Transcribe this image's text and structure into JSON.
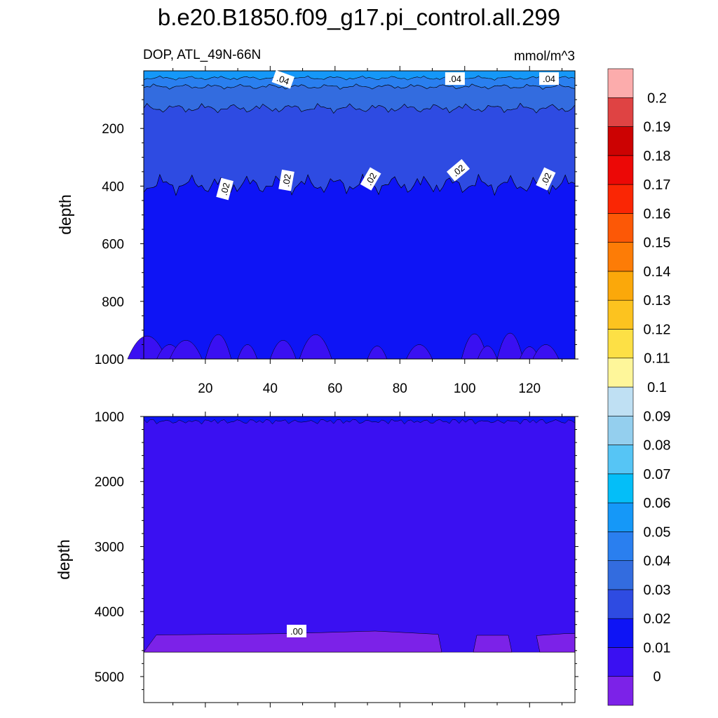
{
  "chart_data": {
    "type": "contour",
    "title": "b.e20.B1850.f09_g17.pi_control.all.299",
    "variable_label": "DOP, ATL_49N-66N",
    "units": "mmol/m^3",
    "colorbar": {
      "levels": [
        "0",
        "0.01",
        "0.02",
        "0.03",
        "0.04",
        "0.05",
        "0.06",
        "0.07",
        "0.08",
        "0.09",
        "0.1",
        "0.11",
        "0.12",
        "0.13",
        "0.14",
        "0.15",
        "0.16",
        "0.17",
        "0.18",
        "0.19",
        "0.2"
      ],
      "colors": [
        "#7c22e8",
        "#3a10f2",
        "#0e14f5",
        "#2e4be2",
        "#336cdf",
        "#2a7fef",
        "#1598f8",
        "#04bef8",
        "#56c5f5",
        "#94cfee",
        "#bfe0f3",
        "#fef69a",
        "#fde045",
        "#fcc31f",
        "#fba80a",
        "#fd7c06",
        "#fc5806",
        "#fa2604",
        "#ec0806",
        "#cc0202",
        "#df4343",
        "#fcacac"
      ]
    },
    "upper_panel": {
      "ylabel": "depth",
      "y_range": [
        1000,
        0
      ],
      "y_ticks": [
        "200",
        "400",
        "600",
        "800",
        "1000"
      ],
      "x_range": [
        1,
        134
      ],
      "x_ticks": [
        "20",
        "40",
        "60",
        "80",
        "100",
        "120"
      ],
      "contour_labels": [
        ".04",
        ".04",
        ".04",
        ".02",
        ".02",
        ".02",
        ".02",
        ".02"
      ]
    },
    "lower_panel": {
      "ylabel": "depth",
      "y_range": [
        5400,
        1000
      ],
      "y_ticks": [
        "1000",
        "2000",
        "3000",
        "4000",
        "5000"
      ],
      "contour_labels": [
        ".00"
      ]
    }
  }
}
